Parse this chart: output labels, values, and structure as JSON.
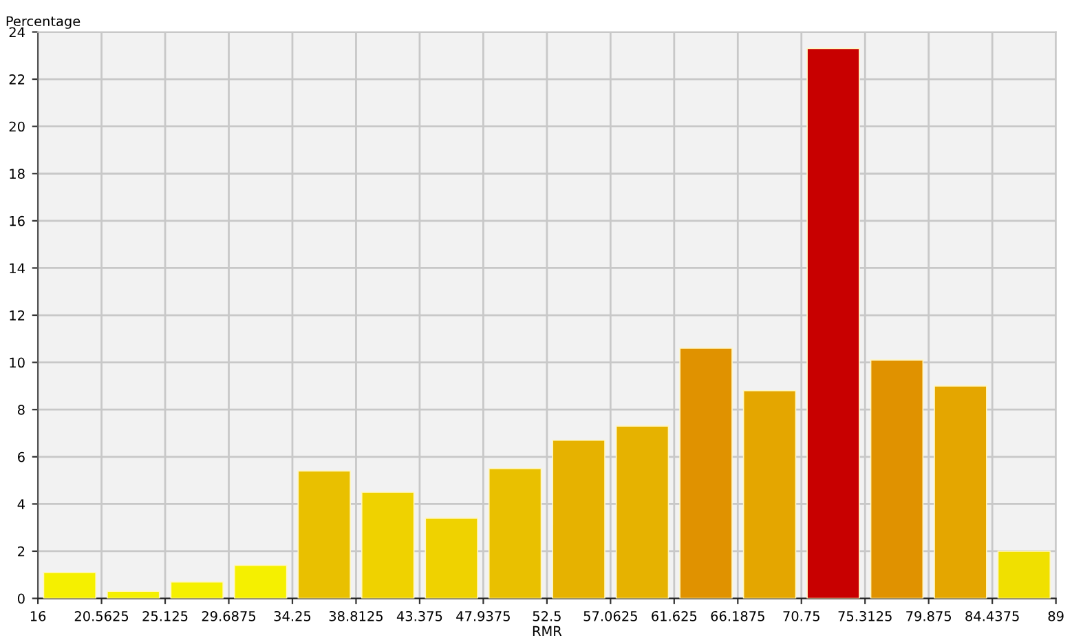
{
  "chart_data": {
    "type": "histogram",
    "xlabel": "RMR",
    "ylabel": "Percentage",
    "bins": [
      16,
      20.5625,
      25.125,
      29.6875,
      34.25,
      38.8125,
      43.375,
      47.9375,
      52.5,
      57.0625,
      61.625,
      66.1875,
      70.75,
      75.3125,
      79.875,
      84.4375,
      89
    ],
    "values": [
      1.1,
      0.3,
      0.7,
      1.4,
      5.4,
      4.5,
      3.4,
      5.5,
      6.7,
      7.3,
      10.6,
      8.8,
      23.3,
      10.1,
      9.0,
      2.0
    ],
    "colors": [
      "#f5f000",
      "#f5f000",
      "#f5f000",
      "#f5f000",
      "#e9c000",
      "#efd200",
      "#efd200",
      "#e9c000",
      "#e6b200",
      "#e6b200",
      "#e09200",
      "#e4a600",
      "#c80000",
      "#e09200",
      "#e4a600",
      "#f0e000"
    ],
    "xlim": [
      16,
      89
    ],
    "ylim": [
      0,
      24
    ],
    "xticks": [
      16,
      20.5625,
      25.125,
      29.6875,
      34.25,
      38.8125,
      43.375,
      47.9375,
      52.5,
      57.0625,
      61.625,
      66.1875,
      70.75,
      75.3125,
      79.875,
      84.4375,
      89
    ],
    "yticks": [
      0,
      2,
      4,
      6,
      8,
      10,
      12,
      14,
      16,
      18,
      20,
      22,
      24
    ],
    "grid": true
  }
}
